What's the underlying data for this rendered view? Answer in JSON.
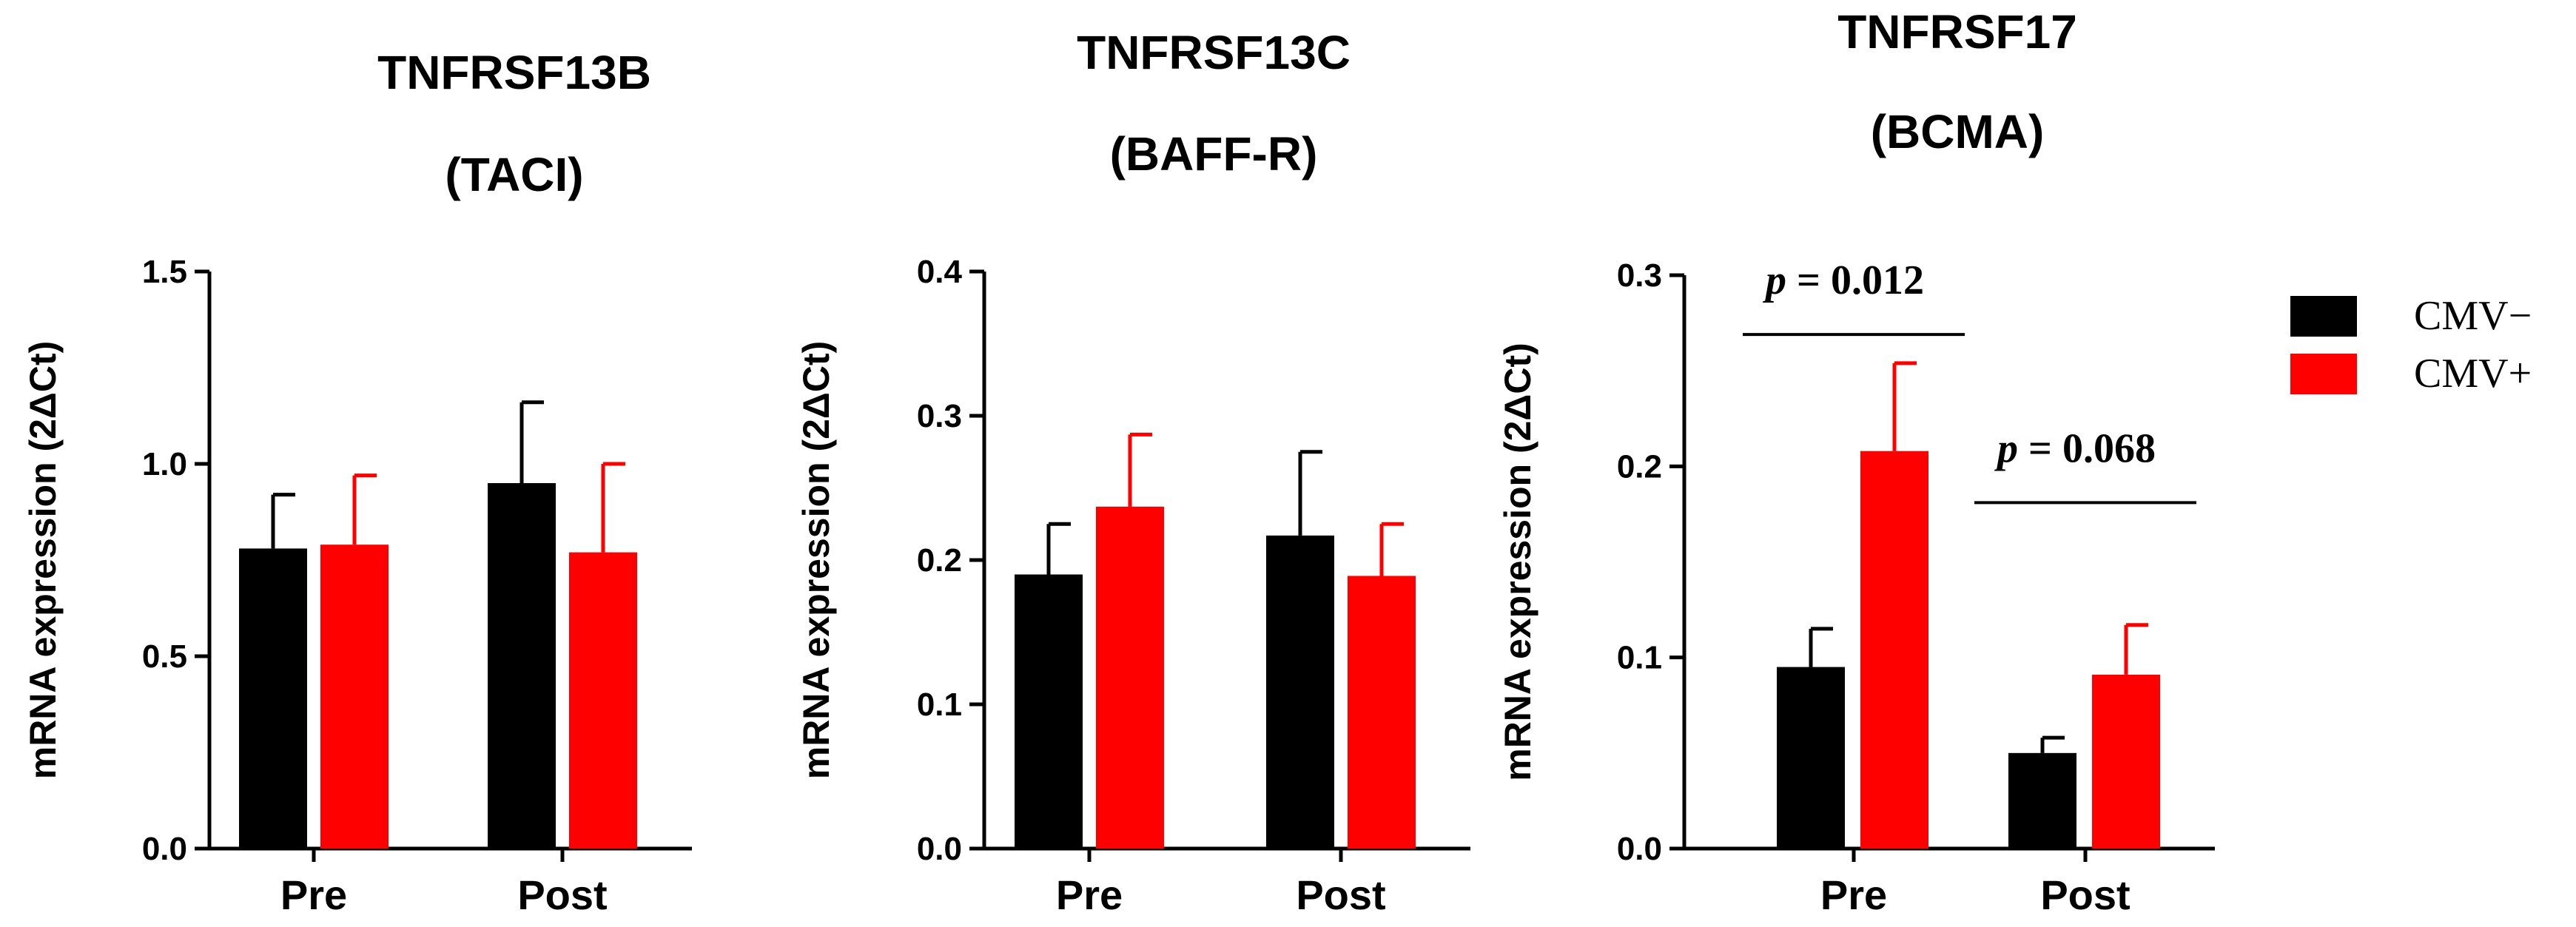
{
  "colors": {
    "cmv_neg": "#000000",
    "cmv_pos": "#ff0000",
    "axis": "#000000"
  },
  "legend": {
    "position": "right",
    "items": [
      {
        "label": "CMV−",
        "color": "#000000"
      },
      {
        "label": "CMV+",
        "color": "#ff0000"
      }
    ]
  },
  "chart_data": [
    {
      "type": "bar",
      "title_line1": "TNFRSF13B",
      "title_line2": "(TACI)",
      "ylabel": "mRNA expression (2ΔCt)",
      "categories": [
        "Pre",
        "Post"
      ],
      "ylim": [
        0,
        1.5
      ],
      "yticks": [
        0.0,
        0.5,
        1.0,
        1.5
      ],
      "ytick_labels": [
        "0.0",
        "0.5",
        "1.0",
        "1.5"
      ],
      "series": [
        {
          "name": "CMV−",
          "color": "#000000",
          "values": [
            0.78,
            0.95
          ],
          "errors": [
            0.14,
            0.21
          ]
        },
        {
          "name": "CMV+",
          "color": "#ff0000",
          "values": [
            0.79,
            0.77
          ],
          "errors": [
            0.18,
            0.23
          ]
        }
      ],
      "annotations": []
    },
    {
      "type": "bar",
      "title_line1": "TNFRSF13C",
      "title_line2": "(BAFF-R)",
      "ylabel": "mRNA expression (2ΔCt)",
      "categories": [
        "Pre",
        "Post"
      ],
      "ylim": [
        0,
        0.4
      ],
      "yticks": [
        0.0,
        0.1,
        0.2,
        0.3,
        0.4
      ],
      "ytick_labels": [
        "0.0",
        "0.1",
        "0.2",
        "0.3",
        "0.4"
      ],
      "series": [
        {
          "name": "CMV−",
          "color": "#000000",
          "values": [
            0.19,
            0.217
          ],
          "errors": [
            0.035,
            0.058
          ]
        },
        {
          "name": "CMV+",
          "color": "#ff0000",
          "values": [
            0.237,
            0.189
          ],
          "errors": [
            0.05,
            0.036
          ]
        }
      ],
      "annotations": []
    },
    {
      "type": "bar",
      "title_line1": "TNFRSF17",
      "title_line2": "(BCMA)",
      "ylabel": "mRNA expression (2ΔCt)",
      "categories": [
        "Pre",
        "Post"
      ],
      "ylim": [
        0,
        0.3
      ],
      "yticks": [
        0.0,
        0.1,
        0.2,
        0.3
      ],
      "ytick_labels": [
        "0.0",
        "0.1",
        "0.2",
        "0.3"
      ],
      "series": [
        {
          "name": "CMV−",
          "color": "#000000",
          "values": [
            0.095,
            0.05
          ],
          "errors": [
            0.02,
            0.008
          ]
        },
        {
          "name": "CMV+",
          "color": "#ff0000",
          "values": [
            0.208,
            0.091
          ],
          "errors": [
            0.046,
            0.026
          ]
        }
      ],
      "annotations": [
        {
          "p_symbol": "p",
          "text": " = 0.012",
          "category": "Pre",
          "line_y": 0.269
        },
        {
          "p_symbol": "p",
          "text": " = 0.068",
          "category": "Post",
          "line_y": 0.181
        }
      ]
    }
  ]
}
